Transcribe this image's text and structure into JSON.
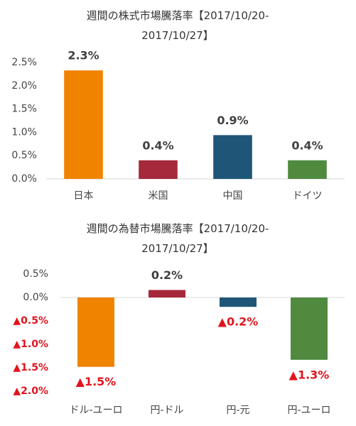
{
  "chart_data": [
    {
      "type": "bar",
      "title": "週間の株式市場騰落率【2017/10/20-2017/10/27】",
      "categories": [
        "日本",
        "米国",
        "中国",
        "ドイツ"
      ],
      "values": [
        2.33,
        0.4,
        0.94,
        0.4
      ],
      "value_labels": [
        "2.3%",
        "0.4%",
        "0.9%",
        "0.4%"
      ],
      "colors": [
        "#f08300",
        "#a5293b",
        "#1f5678",
        "#4f8a3f"
      ],
      "ylim": [
        0,
        2.5
      ],
      "yticks": [
        {
          "value": 0,
          "label": "0.0%"
        },
        {
          "value": 0.5,
          "label": "0.5%"
        },
        {
          "value": 1,
          "label": "1.0%"
        },
        {
          "value": 1.5,
          "label": "1.5%"
        },
        {
          "value": 2,
          "label": "2.0%"
        },
        {
          "value": 2.5,
          "label": "2.5%"
        }
      ]
    },
    {
      "type": "bar",
      "title": "週間の為替市場騰落率【2017/10/20-2017/10/27】",
      "categories": [
        "ドル-ユーロ",
        "円-ドル",
        "円-元",
        "円-ユーロ"
      ],
      "values": [
        -1.48,
        0.16,
        -0.2,
        -1.33
      ],
      "value_labels": [
        "▲1.5%",
        "0.2%",
        "▲0.2%",
        "▲1.3%"
      ],
      "colors": [
        "#f08300",
        "#a5293b",
        "#1f5678",
        "#4f8a3f"
      ],
      "ylim": [
        -2,
        0.5
      ],
      "yticks": [
        {
          "value": 0.5,
          "label": "0.5%"
        },
        {
          "value": 0,
          "label": "0.0%"
        },
        {
          "value": -0.5,
          "label": "▲0.5%"
        },
        {
          "value": -1,
          "label": "▲1.0%"
        },
        {
          "value": -1.5,
          "label": "▲1.5%"
        },
        {
          "value": -2,
          "label": "▲2.0%"
        }
      ]
    }
  ]
}
